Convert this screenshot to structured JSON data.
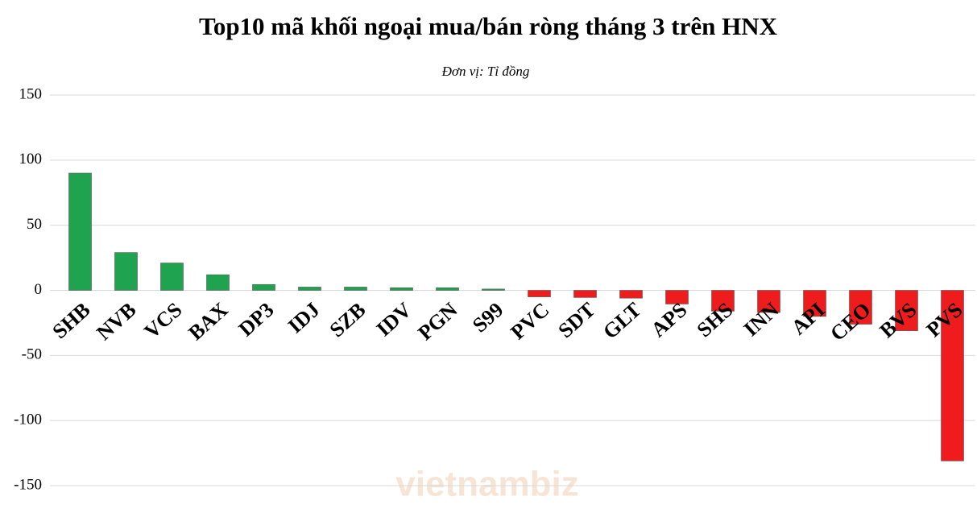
{
  "chart_data": {
    "type": "bar",
    "title": "Top10 mã khối ngoại mua/bán ròng tháng 3 trên HNX",
    "subtitle": "Đơn vị: Tỉ đồng",
    "watermark": "vietnambiz",
    "categories": [
      "SHB",
      "NVB",
      "VCS",
      "BAX",
      "DP3",
      "IDJ",
      "SZB",
      "IDV",
      "PGN",
      "S99",
      "PVC",
      "SDT",
      "GLT",
      "APS",
      "SHS",
      "INN",
      "API",
      "CEO",
      "BVS",
      "PVS"
    ],
    "values": [
      90,
      29,
      21,
      12,
      4.5,
      2.5,
      2.5,
      2,
      2,
      1,
      -5,
      -5.5,
      -6,
      -10.5,
      -16,
      -17,
      -20,
      -26,
      -31,
      -131
    ],
    "positive_color": "#1fa34f",
    "negative_color": "#ee1c1c",
    "ylim": [
      -150,
      150
    ],
    "yticks": [
      -150,
      -100,
      -50,
      0,
      50,
      100,
      150
    ],
    "grid": true
  }
}
